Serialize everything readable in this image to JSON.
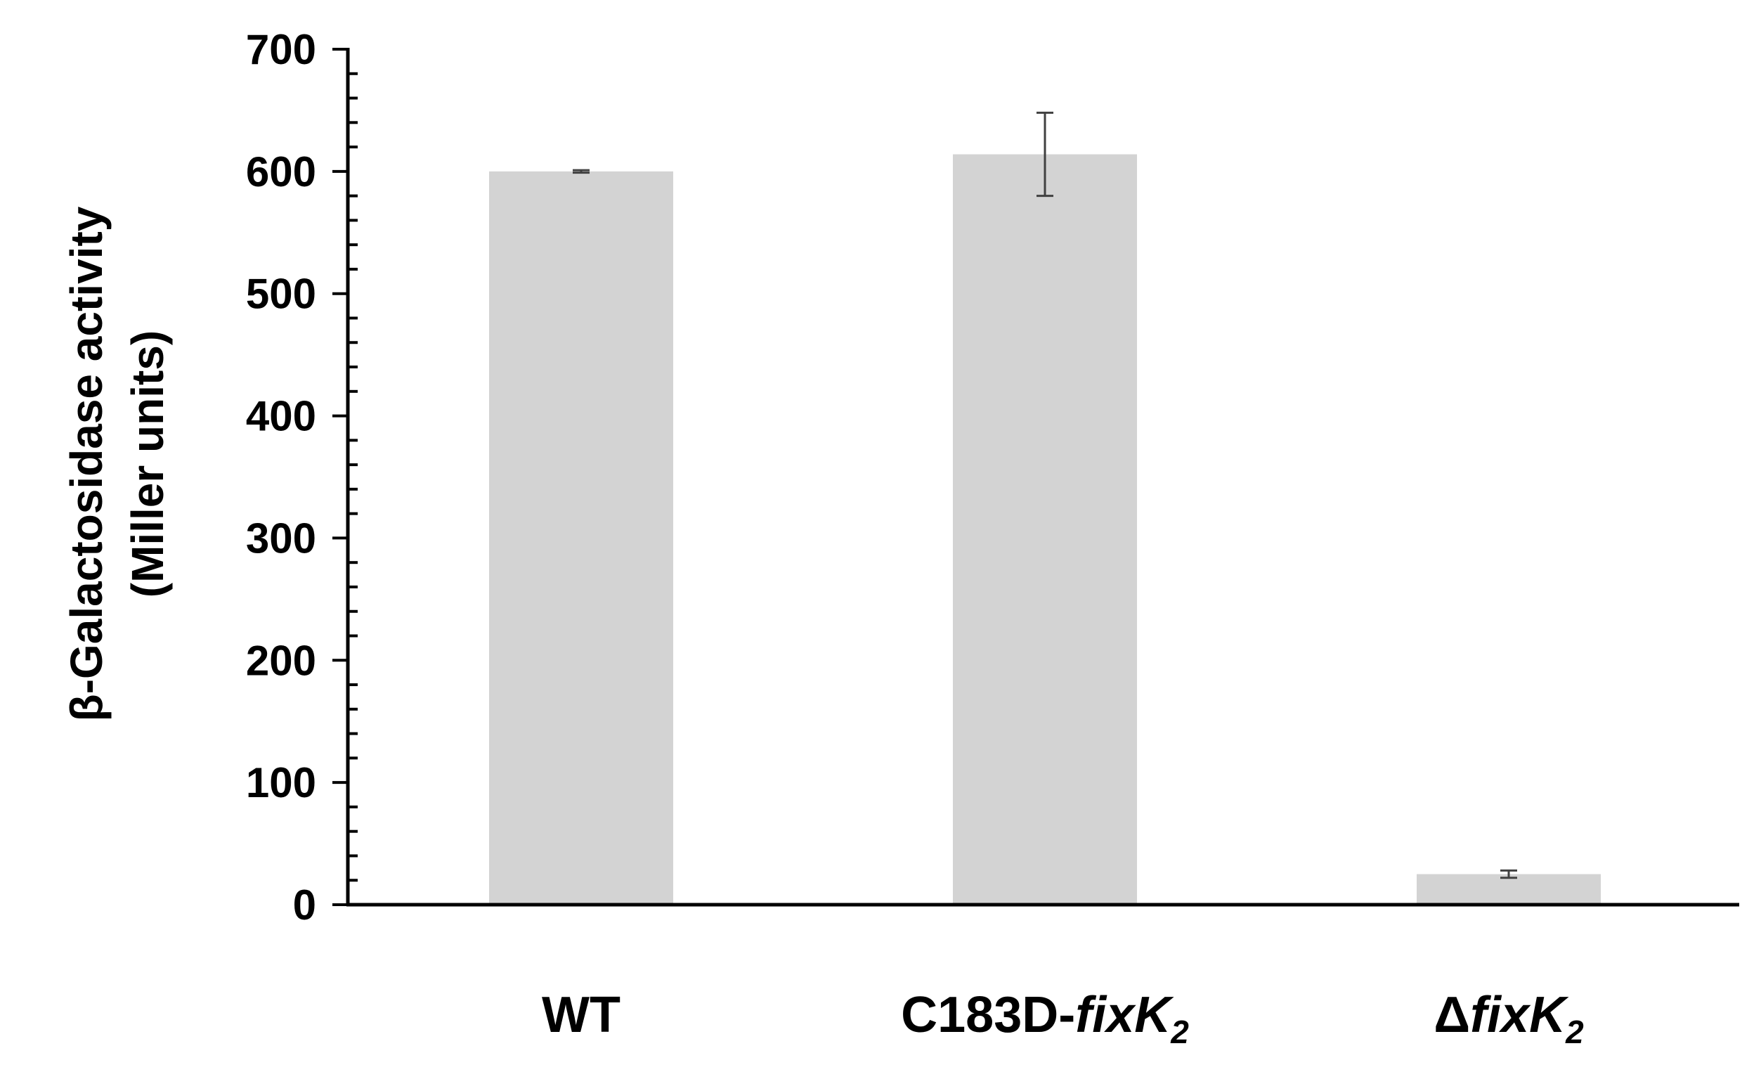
{
  "chart_data": {
    "type": "bar",
    "title": "",
    "xlabel": "",
    "ylabel_line1": "β-Galactosidase activity",
    "ylabel_line2": "(Miller units)",
    "ylim": [
      0,
      700
    ],
    "major_tick_step": 100,
    "minor_tick_step": 20,
    "yticks": [
      "0",
      "100",
      "200",
      "300",
      "400",
      "500",
      "600",
      "700"
    ],
    "grid": false,
    "legend": "none",
    "bar_color": "#d3d3d3",
    "errorbar_color": "#404040",
    "categories": [
      {
        "prefix": "WT",
        "italic": "",
        "sub": ""
      },
      {
        "prefix": "C183D-",
        "italic": "fixK",
        "sub": "2"
      },
      {
        "prefix": "Δ",
        "italic": "fixK",
        "sub": "2"
      }
    ],
    "values": [
      600,
      614,
      25
    ],
    "errors": [
      1,
      34,
      3
    ]
  }
}
